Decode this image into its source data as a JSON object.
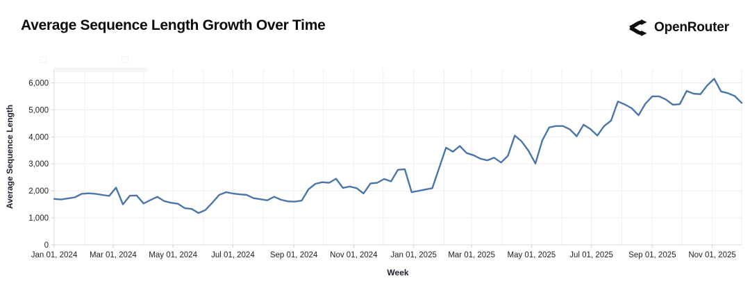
{
  "header": {
    "title": "Average Sequence Length Growth Over Time",
    "brand": {
      "name": "OpenRouter",
      "logo_icon": "openrouter-fork-arrows"
    }
  },
  "chart_data": {
    "type": "line",
    "title": "Average Sequence Length Growth Over Time",
    "xlabel": "Week",
    "ylabel": "Average Sequence Length",
    "grid": true,
    "legend": "none",
    "line_color": "#4a75a7",
    "grid_color": "#ebebeb",
    "axis_color": "#d9d9d9",
    "ylim": [
      0,
      6500
    ],
    "yticks": [
      0,
      1000,
      2000,
      3000,
      4000,
      5000,
      6000
    ],
    "ytick_labels": [
      "0",
      "1,000",
      "2,000",
      "3,000",
      "4,000",
      "5,000",
      "6,000"
    ],
    "xticks": [
      {
        "date": "2024-01-01",
        "label": "Jan 01, 2024"
      },
      {
        "date": "2024-03-01",
        "label": "Mar 01, 2024"
      },
      {
        "date": "2024-05-01",
        "label": "May 01, 2024"
      },
      {
        "date": "2024-07-01",
        "label": "Jul 01, 2024"
      },
      {
        "date": "2024-09-01",
        "label": "Sep 01, 2024"
      },
      {
        "date": "2024-11-01",
        "label": "Nov 01, 2024"
      },
      {
        "date": "2025-01-01",
        "label": "Jan 01, 2025"
      },
      {
        "date": "2025-03-01",
        "label": "Mar 01, 2025"
      },
      {
        "date": "2025-05-01",
        "label": "May 01, 2025"
      },
      {
        "date": "2025-07-01",
        "label": "Jul 01, 2025"
      },
      {
        "date": "2025-09-01",
        "label": "Sep 01, 2025"
      },
      {
        "date": "2025-11-01",
        "label": "Nov 01, 2025"
      }
    ],
    "series": [
      {
        "name": "Average Sequence Length",
        "start_date": "2024-01-01",
        "interval_days": 7,
        "values": [
          1700,
          1680,
          1720,
          1760,
          1890,
          1910,
          1890,
          1850,
          1810,
          2120,
          1500,
          1820,
          1830,
          1530,
          1660,
          1780,
          1620,
          1560,
          1520,
          1360,
          1330,
          1180,
          1290,
          1560,
          1850,
          1950,
          1900,
          1870,
          1850,
          1730,
          1690,
          1650,
          1780,
          1670,
          1610,
          1600,
          1640,
          2060,
          2260,
          2320,
          2300,
          2450,
          2110,
          2160,
          2100,
          1900,
          2270,
          2300,
          2440,
          2350,
          2780,
          2800,
          1950,
          2000,
          2050,
          2100,
          2850,
          3600,
          3450,
          3660,
          3400,
          3320,
          3190,
          3130,
          3230,
          3050,
          3300,
          4050,
          3830,
          3480,
          3010,
          3870,
          4350,
          4400,
          4400,
          4280,
          4020,
          4450,
          4290,
          4050,
          4400,
          4600,
          5310,
          5200,
          5060,
          4800,
          5230,
          5500,
          5500,
          5380,
          5190,
          5210,
          5700,
          5600,
          5580,
          5910,
          6150,
          5680,
          5620,
          5510,
          5260
        ]
      }
    ]
  }
}
